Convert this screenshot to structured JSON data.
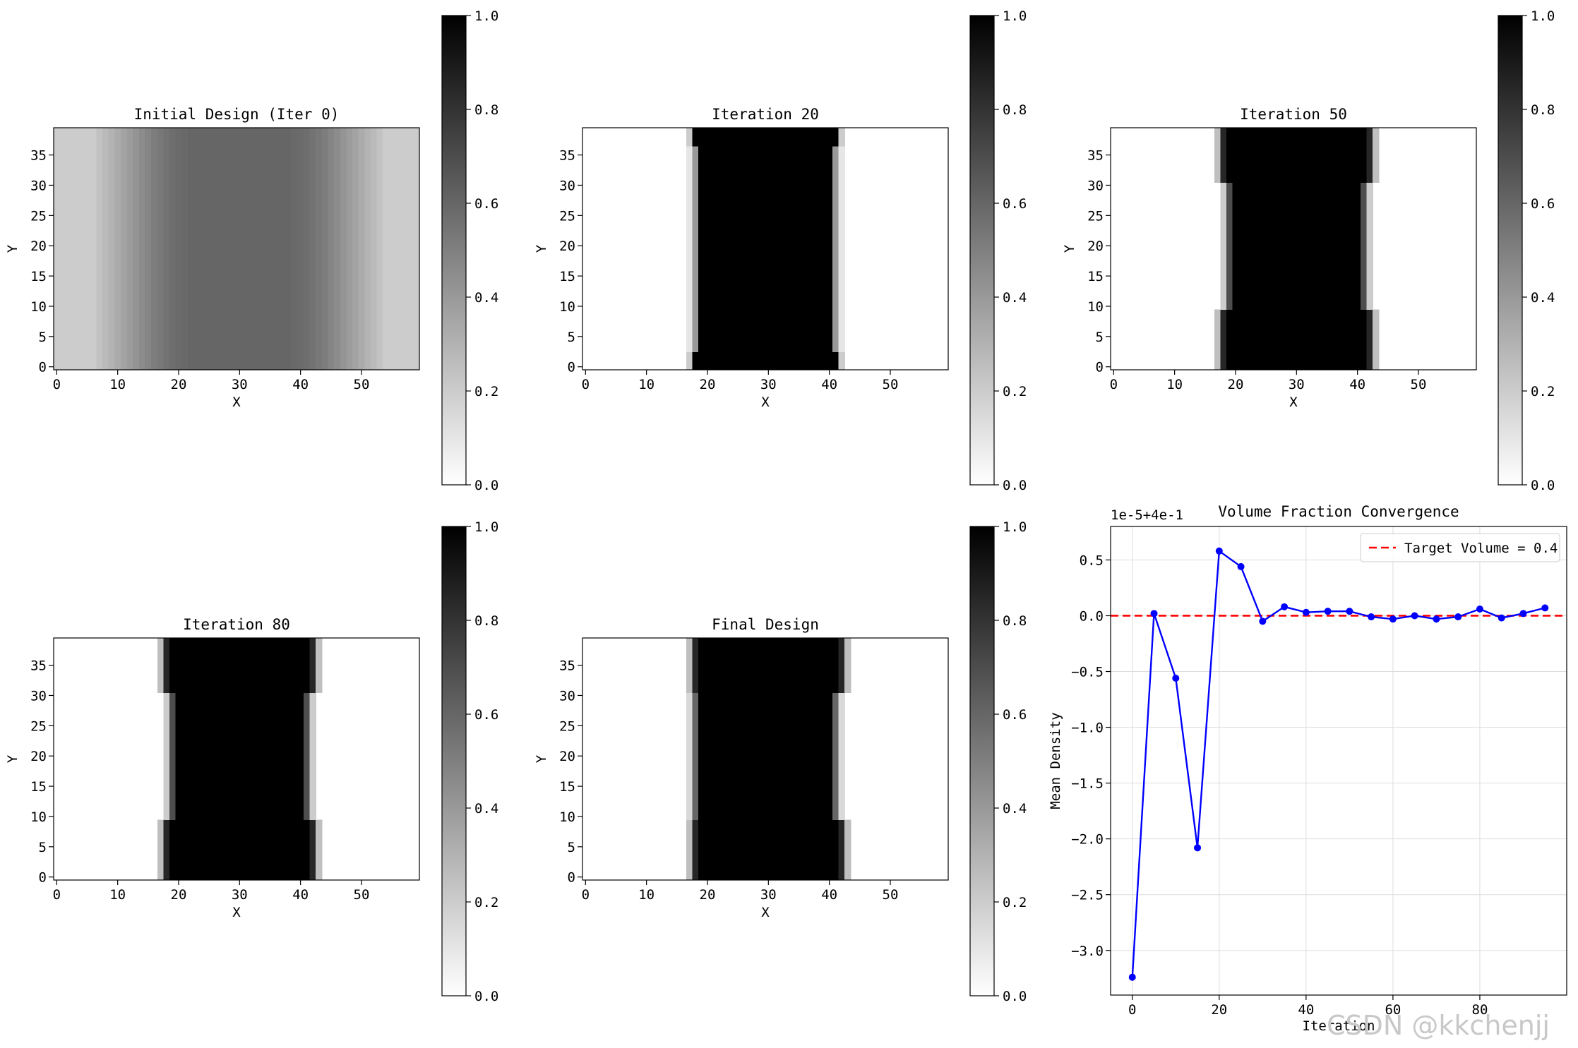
{
  "chart_data": [
    {
      "type": "heatmap",
      "title": "Initial Design (Iter 0)",
      "xlabel": "X",
      "ylabel": "Y",
      "grid_size": [
        60,
        40
      ],
      "xlim": [
        -0.5,
        59.5
      ],
      "ylim": [
        -0.5,
        39.5
      ],
      "xticks": [
        0,
        10,
        20,
        30,
        40,
        50
      ],
      "yticks": [
        0,
        5,
        10,
        15,
        20,
        25,
        30,
        35
      ],
      "colormap": "gray_r",
      "colorbar": {
        "range": [
          0,
          1
        ],
        "ticks": [
          "0.0",
          "0.2",
          "0.4",
          "0.6",
          "0.8",
          "1.0"
        ]
      },
      "column_profile": [
        0.2,
        0.2,
        0.2,
        0.2,
        0.2,
        0.2,
        0.2,
        0.24,
        0.27,
        0.3,
        0.33,
        0.36,
        0.39,
        0.42,
        0.45,
        0.48,
        0.51,
        0.53,
        0.55,
        0.57,
        0.58,
        0.59,
        0.6,
        0.6,
        0.6,
        0.6,
        0.6,
        0.6,
        0.6,
        0.6,
        0.6,
        0.6,
        0.6,
        0.6,
        0.6,
        0.6,
        0.6,
        0.6,
        0.6,
        0.59,
        0.58,
        0.57,
        0.55,
        0.53,
        0.51,
        0.48,
        0.45,
        0.42,
        0.39,
        0.36,
        0.33,
        0.3,
        0.27,
        0.24,
        0.2,
        0.2,
        0.2,
        0.2,
        0.2,
        0.2
      ]
    },
    {
      "type": "heatmap",
      "title": "Iteration 20",
      "xlabel": "X",
      "ylabel": "Y",
      "grid_size": [
        60,
        40
      ],
      "xlim": [
        -0.5,
        59.5
      ],
      "ylim": [
        -0.5,
        39.5
      ],
      "xticks": [
        0,
        10,
        20,
        30,
        40,
        50
      ],
      "yticks": [
        0,
        5,
        10,
        15,
        20,
        25,
        30,
        35
      ],
      "colormap": "gray_r",
      "colorbar": {
        "range": [
          0,
          1
        ],
        "ticks": [
          "0.0",
          "0.2",
          "0.4",
          "0.6",
          "0.8",
          "1.0"
        ]
      },
      "rows": [
        {
          "y_range": [
            0,
            2
          ],
          "edges": [
            [
              17,
              0.2
            ],
            [
              18,
              0.8
            ],
            [
              41,
              0.8
            ],
            [
              42,
              0.2
            ]
          ],
          "solid": [
            18,
            41
          ]
        },
        {
          "y_range": [
            3,
            36
          ],
          "edges": [
            [
              17,
              0.1
            ],
            [
              18,
              0.4
            ],
            [
              41,
              0.4
            ],
            [
              42,
              0.1
            ]
          ],
          "solid": [
            19,
            40
          ]
        },
        {
          "y_range": [
            37,
            39
          ],
          "edges": [
            [
              17,
              0.2
            ],
            [
              18,
              0.8
            ],
            [
              41,
              0.8
            ],
            [
              42,
              0.2
            ]
          ],
          "solid": [
            18,
            41
          ]
        }
      ]
    },
    {
      "type": "heatmap",
      "title": "Iteration 50",
      "xlabel": "X",
      "ylabel": "Y",
      "grid_size": [
        60,
        40
      ],
      "xlim": [
        -0.5,
        59.5
      ],
      "ylim": [
        -0.5,
        39.5
      ],
      "xticks": [
        0,
        10,
        20,
        30,
        40,
        50
      ],
      "yticks": [
        0,
        5,
        10,
        15,
        20,
        25,
        30,
        35
      ],
      "colormap": "gray_r",
      "colorbar": {
        "range": [
          0,
          1
        ],
        "ticks": [
          "0.0",
          "0.2",
          "0.4",
          "0.6",
          "0.8",
          "1.0"
        ]
      },
      "rows": [
        {
          "y_range": [
            0,
            9
          ],
          "edges": [
            [
              17,
              0.25
            ],
            [
              18,
              0.85
            ],
            [
              42,
              0.85
            ],
            [
              43,
              0.25
            ]
          ],
          "solid": [
            19,
            41
          ]
        },
        {
          "y_range": [
            10,
            30
          ],
          "edges": [
            [
              18,
              0.2
            ],
            [
              19,
              0.7
            ],
            [
              41,
              0.7
            ],
            [
              42,
              0.2
            ]
          ],
          "solid": [
            20,
            40
          ]
        },
        {
          "y_range": [
            31,
            39
          ],
          "edges": [
            [
              17,
              0.25
            ],
            [
              18,
              0.85
            ],
            [
              42,
              0.85
            ],
            [
              43,
              0.25
            ]
          ],
          "solid": [
            19,
            41
          ]
        }
      ]
    },
    {
      "type": "heatmap",
      "title": "Iteration 80",
      "xlabel": "X",
      "ylabel": "Y",
      "grid_size": [
        60,
        40
      ],
      "xlim": [
        -0.5,
        59.5
      ],
      "ylim": [
        -0.5,
        39.5
      ],
      "xticks": [
        0,
        10,
        20,
        30,
        40,
        50
      ],
      "yticks": [
        0,
        5,
        10,
        15,
        20,
        25,
        30,
        35
      ],
      "colormap": "gray_r",
      "colorbar": {
        "range": [
          0,
          1
        ],
        "ticks": [
          "0.0",
          "0.2",
          "0.4",
          "0.6",
          "0.8",
          "1.0"
        ]
      },
      "rows": [
        {
          "y_range": [
            0,
            9
          ],
          "edges": [
            [
              17,
              0.25
            ],
            [
              18,
              0.85
            ],
            [
              42,
              0.85
            ],
            [
              43,
              0.25
            ]
          ],
          "solid": [
            19,
            41
          ]
        },
        {
          "y_range": [
            10,
            30
          ],
          "edges": [
            [
              18,
              0.2
            ],
            [
              19,
              0.7
            ],
            [
              41,
              0.7
            ],
            [
              42,
              0.2
            ]
          ],
          "solid": [
            20,
            40
          ]
        },
        {
          "y_range": [
            31,
            39
          ],
          "edges": [
            [
              17,
              0.25
            ],
            [
              18,
              0.85
            ],
            [
              42,
              0.85
            ],
            [
              43,
              0.25
            ]
          ],
          "solid": [
            19,
            41
          ]
        }
      ]
    },
    {
      "type": "heatmap",
      "title": "Final Design",
      "xlabel": "X",
      "ylabel": "Y",
      "grid_size": [
        60,
        40
      ],
      "xlim": [
        -0.5,
        59.5
      ],
      "ylim": [
        -0.5,
        39.5
      ],
      "xticks": [
        0,
        10,
        20,
        30,
        40,
        50
      ],
      "yticks": [
        0,
        5,
        10,
        15,
        20,
        25,
        30,
        35
      ],
      "colormap": "gray_r",
      "colorbar": {
        "range": [
          0,
          1
        ],
        "ticks": [
          "0.0",
          "0.2",
          "0.4",
          "0.6",
          "0.8",
          "1.0"
        ]
      },
      "rows": [
        {
          "y_range": [
            0,
            9
          ],
          "edges": [
            [
              17,
              0.25
            ],
            [
              18,
              0.85
            ],
            [
              42,
              0.85
            ],
            [
              43,
              0.25
            ]
          ],
          "solid": [
            19,
            41
          ]
        },
        {
          "y_range": [
            10,
            30
          ],
          "edges": [
            [
              17,
              0.15
            ],
            [
              18,
              0.6
            ],
            [
              41,
              0.6
            ],
            [
              42,
              0.15
            ]
          ],
          "solid": [
            19,
            40
          ]
        },
        {
          "y_range": [
            31,
            39
          ],
          "edges": [
            [
              17,
              0.25
            ],
            [
              18,
              0.85
            ],
            [
              42,
              0.85
            ],
            [
              43,
              0.25
            ]
          ],
          "solid": [
            19,
            41
          ]
        }
      ]
    },
    {
      "type": "line",
      "title": "Volume Fraction Convergence",
      "xlabel": "Iteration",
      "ylabel": "Mean Density",
      "offset_text": "1e-5+4e-1",
      "x": [
        0,
        5,
        10,
        15,
        20,
        25,
        30,
        35,
        40,
        45,
        50,
        55,
        60,
        65,
        70,
        75,
        80,
        85,
        90,
        95
      ],
      "series": [
        {
          "values": [
            -3.24,
            0.02,
            -0.56,
            -2.08,
            0.58,
            0.44,
            -0.05,
            0.08,
            0.03,
            0.04,
            0.04,
            -0.01,
            -0.03,
            0.0,
            -0.03,
            -0.01,
            0.06,
            -0.02,
            0.02,
            0.07
          ],
          "color": "#0000ff"
        }
      ],
      "reference_line": {
        "y": 0.0,
        "label": "Target Volume = 0.4",
        "color": "#ff0000",
        "style": "dashed"
      },
      "xlim": [
        -5,
        100
      ],
      "ylim": [
        -3.4,
        0.8
      ],
      "xticks": [
        0,
        20,
        40,
        60,
        80
      ],
      "yticks": [
        0.5,
        0.0,
        -0.5,
        -1.0,
        -1.5,
        -2.0,
        -2.5,
        -3.0
      ],
      "ytick_labels": [
        "0.5",
        "0.0",
        "−0.5",
        "−1.0",
        "−1.5",
        "−2.0",
        "−2.5",
        "−3.0"
      ],
      "grid": true,
      "legend": "upper right"
    }
  ],
  "watermark": "CSDN @kkchenjj"
}
